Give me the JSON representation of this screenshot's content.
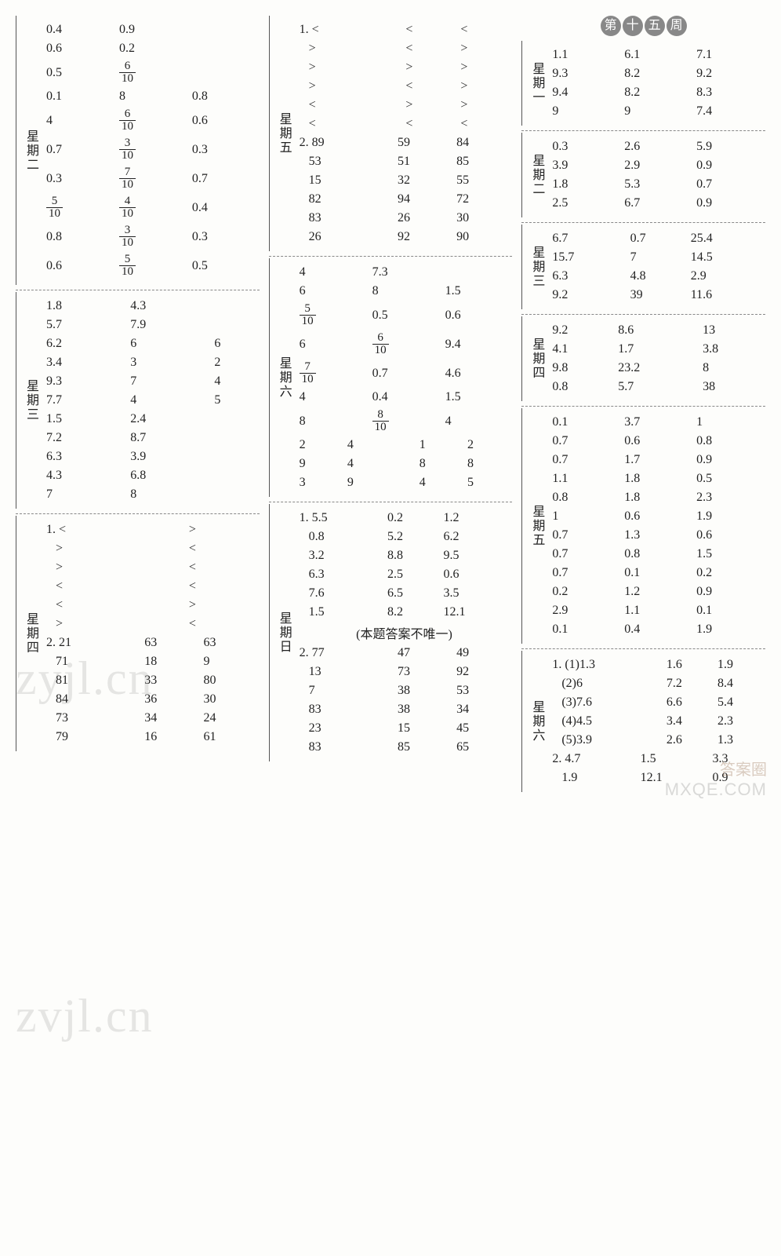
{
  "week_badge": [
    "第",
    "十",
    "五",
    "周"
  ],
  "watermarks": {
    "wm1": "zyjl.cn",
    "wm2": "zvjl.cn",
    "corner": "MXQE.COM",
    "corner2": "答案圈"
  },
  "col1": {
    "tue": {
      "label": "星期二",
      "rows": [
        [
          "0.4",
          "0.9",
          ""
        ],
        [
          "0.6",
          "0.2",
          ""
        ],
        [
          "0.5",
          {
            "f": [
              6,
              10
            ]
          },
          ""
        ],
        [
          "0.1",
          "8",
          "0.8"
        ],
        [
          "4",
          {
            "f": [
              6,
              10
            ]
          },
          "0.6"
        ],
        [
          "0.7",
          {
            "f": [
              3,
              10
            ]
          },
          "0.3"
        ],
        [
          "0.3",
          {
            "f": [
              7,
              10
            ]
          },
          "0.7"
        ],
        [
          {
            "f": [
              5,
              10
            ]
          },
          {
            "f": [
              4,
              10
            ]
          },
          "0.4"
        ],
        [
          "0.8",
          {
            "f": [
              3,
              10
            ]
          },
          "0.3"
        ],
        [
          "0.6",
          {
            "f": [
              5,
              10
            ]
          },
          "0.5"
        ]
      ]
    },
    "wed": {
      "label": "星期三",
      "rows": [
        [
          "1.8",
          "4.3",
          ""
        ],
        [
          "5.7",
          "7.9",
          ""
        ],
        [
          "6.2",
          "6",
          "6"
        ],
        [
          "3.4",
          "3",
          "2"
        ],
        [
          "9.3",
          "7",
          "4"
        ],
        [
          "7.7",
          "4",
          "5"
        ],
        [
          "1.5",
          "2.4",
          ""
        ],
        [
          "7.2",
          "8.7",
          ""
        ],
        [
          "6.3",
          "3.9",
          ""
        ],
        [
          "4.3",
          "6.8",
          ""
        ],
        [
          "7",
          "8",
          ""
        ]
      ]
    },
    "thu": {
      "label": "星期四",
      "part1_prefix": "1.",
      "part1": [
        [
          "<",
          ">"
        ],
        [
          ">",
          "<"
        ],
        [
          ">",
          "<"
        ],
        [
          "<",
          "<"
        ],
        [
          "<",
          ">"
        ],
        [
          ">",
          "<"
        ]
      ],
      "part2_prefix": "2.",
      "part2": [
        [
          "21",
          "63",
          "63"
        ],
        [
          "71",
          "18",
          "9"
        ],
        [
          "81",
          "33",
          "80"
        ],
        [
          "84",
          "36",
          "30"
        ],
        [
          "73",
          "34",
          "24"
        ],
        [
          "79",
          "16",
          "61"
        ]
      ]
    }
  },
  "col2": {
    "fri": {
      "label": "星期五",
      "part1_prefix": "1.",
      "part1": [
        [
          "<",
          "<",
          "<"
        ],
        [
          ">",
          "<",
          ">"
        ],
        [
          ">",
          ">",
          ">"
        ],
        [
          ">",
          "<",
          ">"
        ],
        [
          "<",
          ">",
          ">"
        ],
        [
          "<",
          "<",
          "<"
        ]
      ],
      "part2_prefix": "2.",
      "part2": [
        [
          "89",
          "59",
          "84"
        ],
        [
          "53",
          "51",
          "85"
        ],
        [
          "15",
          "32",
          "55"
        ],
        [
          "82",
          "94",
          "72"
        ],
        [
          "83",
          "26",
          "30"
        ],
        [
          "26",
          "92",
          "90"
        ]
      ]
    },
    "sat": {
      "label": "星期六",
      "rows3": [
        [
          "4",
          "7.3",
          ""
        ],
        [
          "6",
          "8",
          "1.5"
        ],
        [
          {
            "f": [
              5,
              10
            ]
          },
          "0.5",
          "0.6"
        ],
        [
          "6",
          {
            "f": [
              6,
              10
            ]
          },
          "9.4"
        ],
        [
          {
            "f": [
              7,
              10
            ]
          },
          "0.7",
          "4.6"
        ],
        [
          "4",
          "0.4",
          "1.5"
        ],
        [
          "8",
          {
            "f": [
              8,
              10
            ]
          },
          "4"
        ]
      ],
      "rows5": [
        [
          "2",
          "4",
          "",
          "1",
          "2"
        ],
        [
          "9",
          "4",
          "",
          "8",
          "8"
        ],
        [
          "3",
          "9",
          "",
          "4",
          "5"
        ]
      ]
    },
    "sun": {
      "label": "星期日",
      "part1_prefix": "1.",
      "part1": [
        [
          "5.5",
          "0.2",
          "1.2"
        ],
        [
          "0.8",
          "5.2",
          "6.2"
        ],
        [
          "3.2",
          "8.8",
          "9.5"
        ],
        [
          "6.3",
          "2.5",
          "0.6"
        ],
        [
          "7.6",
          "6.5",
          "3.5"
        ],
        [
          "1.5",
          "8.2",
          "12.1"
        ]
      ],
      "note": "(本题答案不唯一)",
      "part2_prefix": "2.",
      "part2": [
        [
          "77",
          "47",
          "49"
        ],
        [
          "13",
          "73",
          "92"
        ],
        [
          "7",
          "38",
          "53"
        ],
        [
          "83",
          "38",
          "34"
        ],
        [
          "23",
          "15",
          "45"
        ],
        [
          "83",
          "85",
          "65"
        ]
      ]
    }
  },
  "col3": {
    "mon": {
      "label": "星期一",
      "rows": [
        [
          "1.1",
          "6.1",
          "7.1"
        ],
        [
          "9.3",
          "8.2",
          "9.2"
        ],
        [
          "9.4",
          "8.2",
          "8.3"
        ],
        [
          "9",
          "9",
          "7.4"
        ]
      ]
    },
    "tue": {
      "label": "星期二",
      "rows": [
        [
          "0.3",
          "2.6",
          "5.9"
        ],
        [
          "3.9",
          "2.9",
          "0.9"
        ],
        [
          "1.8",
          "5.3",
          "0.7"
        ],
        [
          "2.5",
          "6.7",
          "0.9"
        ]
      ]
    },
    "wed": {
      "label": "星期三",
      "rows": [
        [
          "6.7",
          "0.7",
          "25.4"
        ],
        [
          "15.7",
          "7",
          "14.5"
        ],
        [
          "6.3",
          "4.8",
          "2.9"
        ],
        [
          "9.2",
          "39",
          "11.6"
        ]
      ]
    },
    "thu": {
      "label": "星期四",
      "rows": [
        [
          "9.2",
          "8.6",
          "13"
        ],
        [
          "4.1",
          "1.7",
          "3.8"
        ],
        [
          "9.8",
          "23.2",
          "8"
        ],
        [
          "0.8",
          "5.7",
          "38"
        ]
      ]
    },
    "fri": {
      "label": "星期五",
      "rows": [
        [
          "0.1",
          "3.7",
          "1"
        ],
        [
          "0.7",
          "0.6",
          "0.8"
        ],
        [
          "0.7",
          "1.7",
          "0.9"
        ],
        [
          "1.1",
          "1.8",
          "0.5"
        ],
        [
          "0.8",
          "1.8",
          "2.3"
        ],
        [
          "1",
          "0.6",
          "1.9"
        ],
        [
          "0.7",
          "1.3",
          "0.6"
        ],
        [
          "0.7",
          "0.8",
          "1.5"
        ],
        [
          "0.7",
          "0.1",
          "0.2"
        ],
        [
          "0.2",
          "1.2",
          "0.9"
        ],
        [
          "2.9",
          "1.1",
          "0.1"
        ],
        [
          "0.1",
          "0.4",
          "1.9"
        ]
      ]
    },
    "sat": {
      "label": "星期六",
      "part1_prefix": "1.",
      "part1": [
        [
          "(1)1.3",
          "1.6",
          "1.9"
        ],
        [
          "(2)6",
          "7.2",
          "8.4"
        ],
        [
          "(3)7.6",
          "6.6",
          "5.4"
        ],
        [
          "(4)4.5",
          "3.4",
          "2.3"
        ],
        [
          "(5)3.9",
          "2.6",
          "1.3"
        ]
      ],
      "part2_prefix": "2.",
      "part2": [
        [
          "4.7",
          "1.5",
          "3.3"
        ],
        [
          "1.9",
          "12.1",
          "0.9"
        ]
      ]
    }
  }
}
